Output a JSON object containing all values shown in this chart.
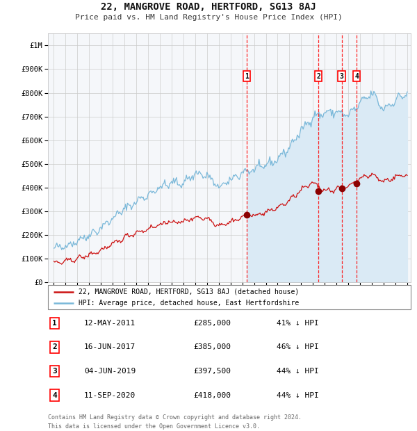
{
  "title": "22, MANGROVE ROAD, HERTFORD, SG13 8AJ",
  "subtitle": "Price paid vs. HM Land Registry's House Price Index (HPI)",
  "hpi_line_color": "#7ab8d9",
  "hpi_fill_color": "#daeaf5",
  "property_color": "#cc1111",
  "background_color": "#ffffff",
  "plot_bg_color": "#f5f7fa",
  "grid_color": "#cccccc",
  "ylim_max": 1050000,
  "yticks": [
    0,
    100000,
    200000,
    300000,
    400000,
    500000,
    600000,
    700000,
    800000,
    900000,
    1000000
  ],
  "ytick_labels": [
    "£0",
    "£100K",
    "£200K",
    "£300K",
    "£400K",
    "£500K",
    "£600K",
    "£700K",
    "£800K",
    "£900K",
    "£1M"
  ],
  "year_start": 1995,
  "year_end": 2025,
  "transactions": [
    {
      "label": "1",
      "date": "12-MAY-2011",
      "year": 2011.37,
      "price": 285000,
      "hpi_pct": "41% ↓ HPI"
    },
    {
      "label": "2",
      "date": "16-JUN-2017",
      "year": 2017.46,
      "price": 385000,
      "hpi_pct": "46% ↓ HPI"
    },
    {
      "label": "3",
      "date": "04-JUN-2019",
      "year": 2019.43,
      "price": 397500,
      "hpi_pct": "44% ↓ HPI"
    },
    {
      "label": "4",
      "date": "11-SEP-2020",
      "year": 2020.7,
      "price": 418000,
      "hpi_pct": "44% ↓ HPI"
    }
  ],
  "legend_property": "22, MANGROVE ROAD, HERTFORD, SG13 8AJ (detached house)",
  "legend_hpi": "HPI: Average price, detached house, East Hertfordshire",
  "footer1": "Contains HM Land Registry data © Crown copyright and database right 2024.",
  "footer2": "This data is licensed under the Open Government Licence v3.0.",
  "hpi_control_years": [
    1995,
    1996,
    1997,
    1998,
    1999,
    2000,
    2001,
    2002,
    2003,
    2004,
    2005,
    2006,
    2007,
    2008,
    2009,
    2010,
    2011,
    2012,
    2013,
    2014,
    2015,
    2016,
    2017,
    2018,
    2019,
    2020,
    2021,
    2022,
    2023,
    2024,
    2025
  ],
  "hpi_control_vals": [
    140000,
    155000,
    175000,
    200000,
    230000,
    270000,
    310000,
    340000,
    370000,
    400000,
    420000,
    420000,
    460000,
    450000,
    400000,
    430000,
    465000,
    475000,
    495000,
    520000,
    570000,
    640000,
    700000,
    715000,
    720000,
    705000,
    755000,
    800000,
    730000,
    770000,
    800000
  ],
  "prop_control_years": [
    1995,
    1996,
    1997,
    1998,
    1999,
    2000,
    2001,
    2002,
    2003,
    2004,
    2005,
    2006,
    2007,
    2008,
    2009,
    2010,
    2011,
    2012,
    2013,
    2014,
    2015,
    2016,
    2017,
    2018,
    2019,
    2020,
    2021,
    2022,
    2023,
    2024,
    2025
  ],
  "prop_control_vals": [
    80000,
    88000,
    100000,
    115000,
    135000,
    160000,
    190000,
    210000,
    225000,
    245000,
    255000,
    255000,
    275000,
    270000,
    240000,
    255000,
    275000,
    283000,
    295000,
    315000,
    345000,
    390000,
    420000,
    388000,
    393000,
    405000,
    440000,
    455000,
    425000,
    445000,
    455000
  ]
}
